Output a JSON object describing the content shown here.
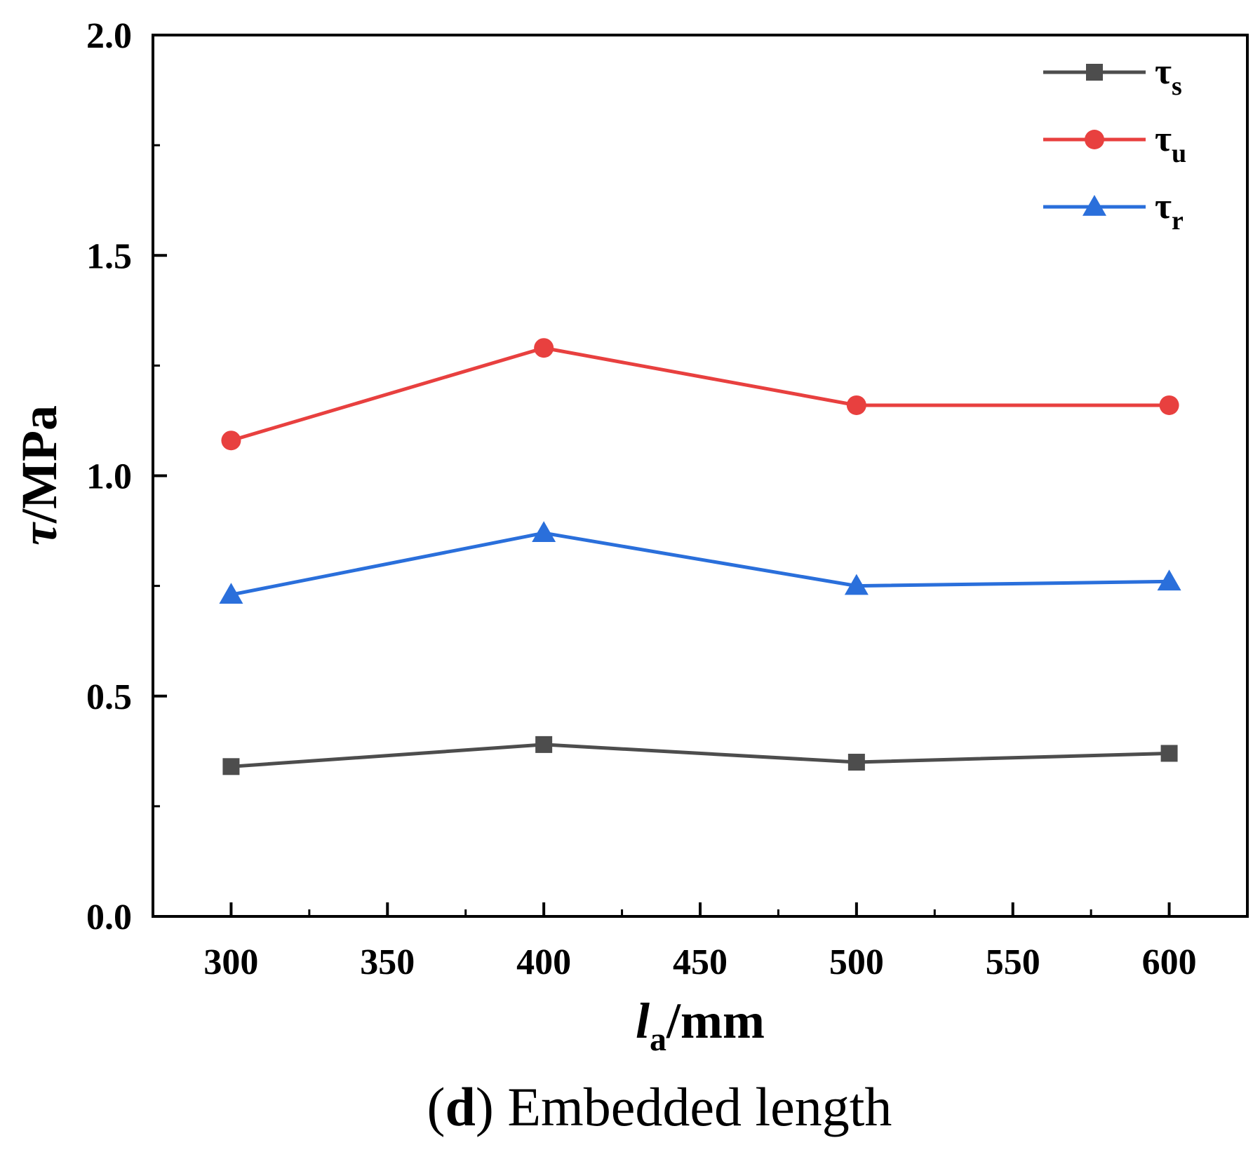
{
  "chart_data": {
    "type": "line",
    "title": "",
    "x": [
      300,
      400,
      500,
      600
    ],
    "xticks": [
      300,
      350,
      400,
      450,
      500,
      550,
      600
    ],
    "xlim": [
      275,
      625
    ],
    "yticks": [
      0.0,
      0.5,
      1.0,
      1.5,
      2.0
    ],
    "ytick_labels": [
      "0.0",
      "0.5",
      "1.0",
      "1.5",
      "2.0"
    ],
    "ylim": [
      0,
      2.0
    ],
    "xlabel": {
      "main": "l",
      "sub": "a",
      "unit": "/mm"
    },
    "ylabel": {
      "main": "τ",
      "unit": "/MPa"
    },
    "series": [
      {
        "key": "s",
        "name": "τ",
        "sub": "s",
        "marker": "square",
        "color": "#4d4d4d",
        "values": [
          0.34,
          0.39,
          0.35,
          0.37
        ]
      },
      {
        "key": "u",
        "name": "τ",
        "sub": "u",
        "marker": "circle",
        "color": "#e8403f",
        "values": [
          1.08,
          1.29,
          1.16,
          1.16
        ]
      },
      {
        "key": "r",
        "name": "τ",
        "sub": "r",
        "marker": "triangle",
        "color": "#2a6fdb",
        "values": [
          0.73,
          0.87,
          0.75,
          0.76
        ]
      }
    ],
    "legend_position": "top-right",
    "grid": false
  },
  "caption": {
    "open": "(",
    "bold": "d",
    "close": ")",
    "text": " Embedded length"
  }
}
